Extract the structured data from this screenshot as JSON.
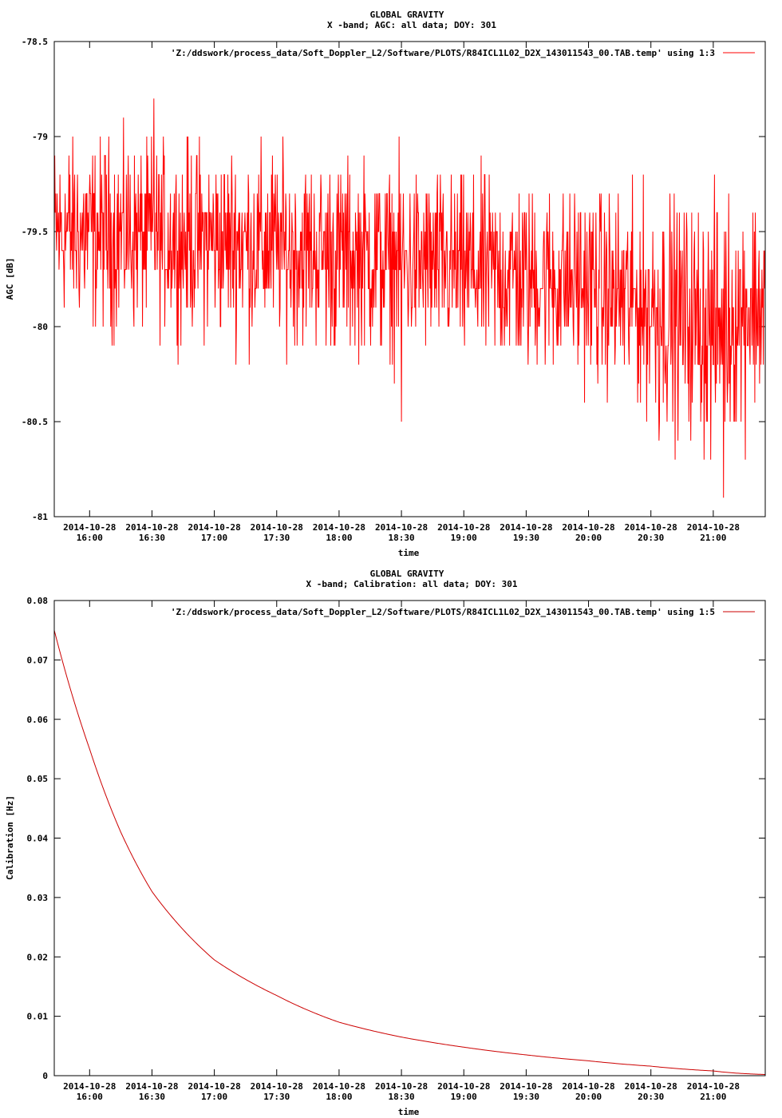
{
  "chart_data": [
    {
      "type": "line",
      "title": "GLOBAL GRAVITY",
      "subtitle": "X -band; AGC: all data; DOY: 301",
      "xlabel": "time",
      "ylabel": "AGC [dB]",
      "ylim": [
        -81,
        -78.5
      ],
      "yticks": [
        -81,
        -80.5,
        -80,
        -79.5,
        -79,
        -78.5
      ],
      "ytick_labels": [
        "-81",
        "-80.5",
        "-80",
        "-79.5",
        "-79",
        "-78.5"
      ],
      "xlim": [
        "2014-10-28 15:43",
        "2014-10-28 21:25"
      ],
      "xticks": [
        "2014-10-28 16:00",
        "2014-10-28 16:30",
        "2014-10-28 17:00",
        "2014-10-28 17:30",
        "2014-10-28 18:00",
        "2014-10-28 18:30",
        "2014-10-28 19:00",
        "2014-10-28 19:30",
        "2014-10-28 20:00",
        "2014-10-28 20:30",
        "2014-10-28 21:00"
      ],
      "xtick_date": "2014-10-28",
      "xtick_times": [
        "16:00",
        "16:30",
        "17:00",
        "17:30",
        "18:00",
        "18:30",
        "19:00",
        "19:30",
        "20:00",
        "20:30",
        "21:00"
      ],
      "series": [
        {
          "name": "'Z:/ddswork/process_data/Soft_Doppler_L2/Software/PLOTS/R84ICL1L02_D2X_143011543_00.TAB.temp' using 1:3",
          "color": "#ff0000",
          "trend": {
            "x": [
              "2014-10-28 15:43",
              "2014-10-28 17:00",
              "2014-10-28 18:00",
              "2014-10-28 19:00",
              "2014-10-28 20:00",
              "2014-10-28 20:30",
              "2014-10-28 21:00",
              "2014-10-28 21:25"
            ],
            "mean": [
              -79.5,
              -79.55,
              -79.62,
              -79.7,
              -79.78,
              -79.9,
              -80.0,
              -79.85
            ],
            "spread": [
              0.3,
              0.3,
              0.3,
              0.3,
              0.3,
              0.35,
              0.4,
              0.35
            ]
          },
          "extremes": [
            {
              "x": "2014-10-28 16:31",
              "y": -78.8
            },
            {
              "x": "2014-10-28 18:30",
              "y": -80.5
            },
            {
              "x": "2014-10-28 20:34",
              "y": -80.6
            },
            {
              "x": "2014-10-28 21:05",
              "y": -80.9
            }
          ],
          "range": [
            -80.9,
            -78.8
          ]
        }
      ]
    },
    {
      "type": "line",
      "title": "GLOBAL GRAVITY",
      "subtitle": "X -band; Calibration: all data; DOY: 301",
      "xlabel": "time",
      "ylabel": "Calibration [Hz]",
      "ylim": [
        0,
        0.08
      ],
      "yticks": [
        0,
        0.01,
        0.02,
        0.03,
        0.04,
        0.05,
        0.06,
        0.07,
        0.08
      ],
      "ytick_labels": [
        "0",
        "0.01",
        "0.02",
        "0.03",
        "0.04",
        "0.05",
        "0.06",
        "0.07",
        "0.08"
      ],
      "xlim": [
        "2014-10-28 15:43",
        "2014-10-28 21:25"
      ],
      "xticks": [
        "2014-10-28 16:00",
        "2014-10-28 16:30",
        "2014-10-28 17:00",
        "2014-10-28 17:30",
        "2014-10-28 18:00",
        "2014-10-28 18:30",
        "2014-10-28 19:00",
        "2014-10-28 19:30",
        "2014-10-28 20:00",
        "2014-10-28 20:30",
        "2014-10-28 21:00"
      ],
      "xtick_date": "2014-10-28",
      "xtick_times": [
        "16:00",
        "16:30",
        "17:00",
        "17:30",
        "18:00",
        "18:30",
        "19:00",
        "19:30",
        "20:00",
        "20:30",
        "21:00"
      ],
      "series": [
        {
          "name": "'Z:/ddswork/process_data/Soft_Doppler_L2/Software/PLOTS/R84ICL1L02_D2X_143011543_00.TAB.temp' using 1:5",
          "color": "#cc0000",
          "x": [
            "2014-10-28 15:43",
            "2014-10-28 16:00",
            "2014-10-28 16:15",
            "2014-10-28 16:30",
            "2014-10-28 17:00",
            "2014-10-28 17:30",
            "2014-10-28 18:00",
            "2014-10-28 18:30",
            "2014-10-28 19:00",
            "2014-10-28 19:30",
            "2014-10-28 20:00",
            "2014-10-28 20:30",
            "2014-10-28 21:00",
            "2014-10-28 21:25"
          ],
          "y": [
            0.075,
            0.055,
            0.041,
            0.031,
            0.0195,
            0.0135,
            0.009,
            0.0065,
            0.0048,
            0.0035,
            0.0025,
            0.0016,
            0.0008,
            0.0002
          ]
        }
      ]
    }
  ]
}
